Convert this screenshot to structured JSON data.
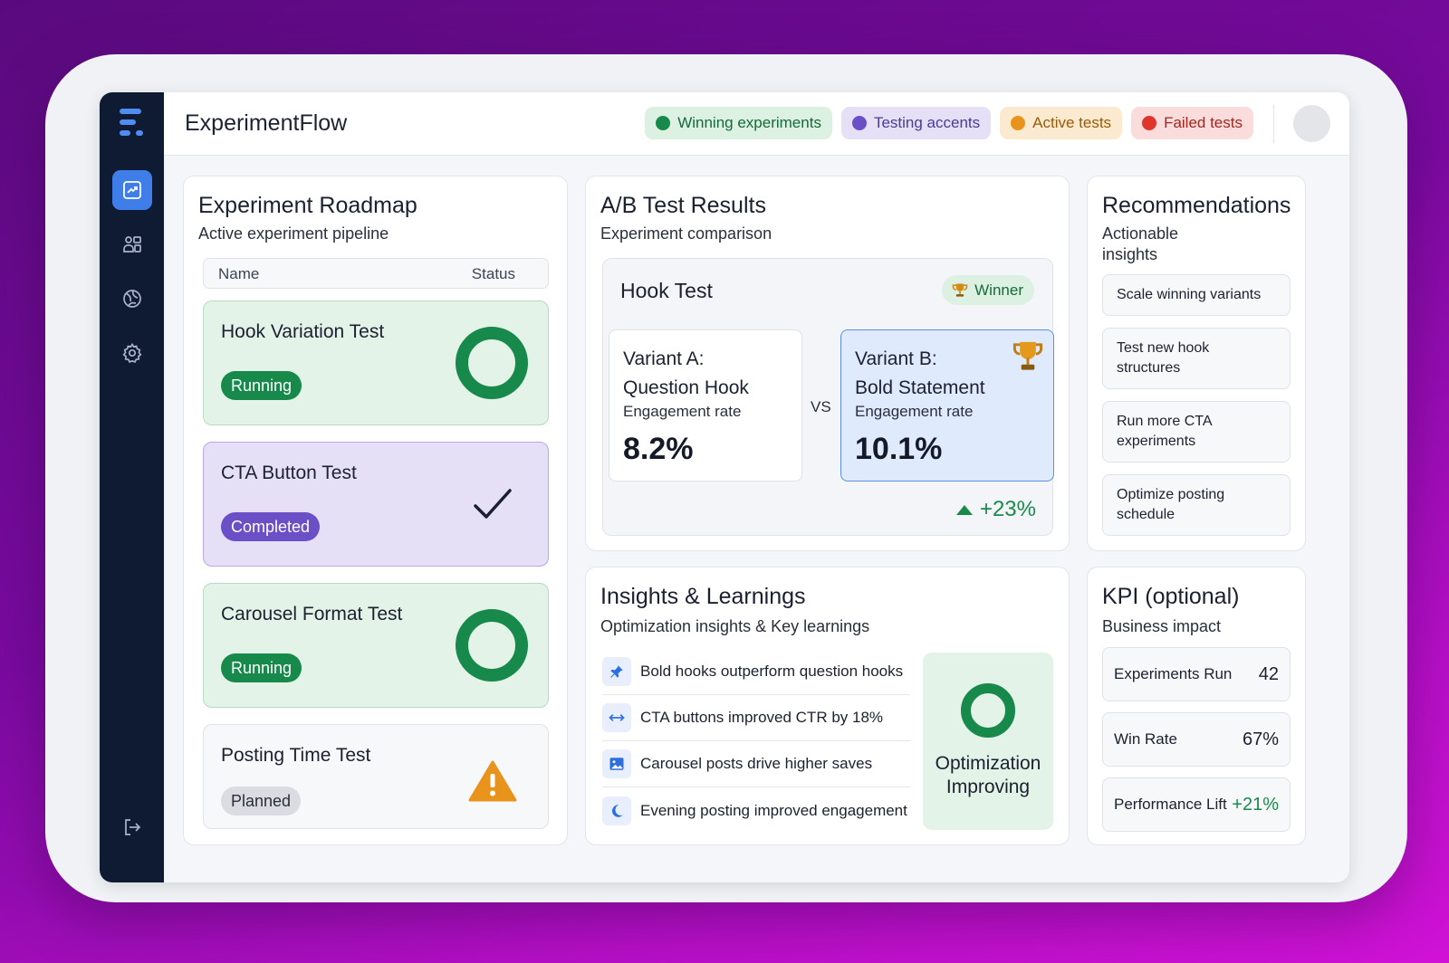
{
  "app": {
    "title": "ExperimentFlow"
  },
  "legend": [
    {
      "label": "Winning experiments",
      "dot": "#17894b",
      "bg": "#dcf1e1",
      "fg": "#166b38"
    },
    {
      "label": "Testing accents",
      "dot": "#6a4fc7",
      "bg": "#e6e0f7",
      "fg": "#4c3a96"
    },
    {
      "label": "Active tests",
      "dot": "#e8941c",
      "bg": "#fbead0",
      "fg": "#9a5a06"
    },
    {
      "label": "Failed tests",
      "dot": "#e0352b",
      "bg": "#fbdcdc",
      "fg": "#a3261f"
    }
  ],
  "sidebar": {
    "items": [
      {
        "icon": "analytics-icon",
        "active": true
      },
      {
        "icon": "users-icon",
        "active": false
      },
      {
        "icon": "globe-icon",
        "active": false
      },
      {
        "icon": "gear-icon",
        "active": false
      }
    ],
    "logout_icon": "logout-icon"
  },
  "roadmap": {
    "title": "Experiment Roadmap",
    "subtitle": "Active experiment pipeline",
    "columns": [
      "Name",
      "Status"
    ],
    "experiments": [
      {
        "name": "Hook Variation Test",
        "status": "Running",
        "status_icon": "ring-icon"
      },
      {
        "name": "CTA Button Test",
        "status": "Completed",
        "status_icon": "checkmark-icon"
      },
      {
        "name": "Carousel Format Test",
        "status": "Running",
        "status_icon": "ring-icon"
      },
      {
        "name": "Posting Time Test",
        "status": "Planned",
        "status_icon": "warning-icon"
      }
    ]
  },
  "ab": {
    "title": "A/B Test Results",
    "subtitle": "Experiment comparison",
    "test_name": "Hook Test",
    "winner_label": "Winner",
    "variant_a": {
      "name_line1": "Variant A:",
      "name_line2": "Question Hook",
      "metric_label": "Engagement rate",
      "value": "8.2%"
    },
    "vs": "VS",
    "variant_b": {
      "name_line1": "Variant B:",
      "name_line2": "Bold Statement",
      "metric_label": "Engagement rate",
      "value": "10.1%"
    },
    "lift": "+23%"
  },
  "recommendations": {
    "title": "Recommendations",
    "subtitle_line1": "Actionable",
    "subtitle_line2": "insights",
    "items": [
      {
        "line1": "Scale winning variants",
        "line2": ""
      },
      {
        "line1": "Test new hook",
        "line2": "structures"
      },
      {
        "line1": "Run more CTA",
        "line2": "experiments"
      },
      {
        "line1": "Optimize posting",
        "line2": "schedule"
      }
    ]
  },
  "insights": {
    "title": "Insights & Learnings",
    "subtitle": "Optimization insights & Key learnings",
    "items": [
      {
        "icon": "pin-icon",
        "text": "Bold hooks outperform question hooks"
      },
      {
        "icon": "arrows-icon",
        "text": "CTA buttons improved CTR by 18%"
      },
      {
        "icon": "image-icon",
        "text": "Carousel posts drive higher saves"
      },
      {
        "icon": "moon-icon",
        "text": "Evening posting improved engagement"
      }
    ],
    "status_line1": "Optimization",
    "status_line2": "Improving"
  },
  "kpi": {
    "title": "KPI (optional)",
    "subtitle": "Business impact",
    "items": [
      {
        "label": "Experiments Run",
        "value": "42"
      },
      {
        "label": "Win Rate",
        "value": "67%"
      },
      {
        "label": "Performance Lift",
        "value": "+21%"
      }
    ]
  }
}
